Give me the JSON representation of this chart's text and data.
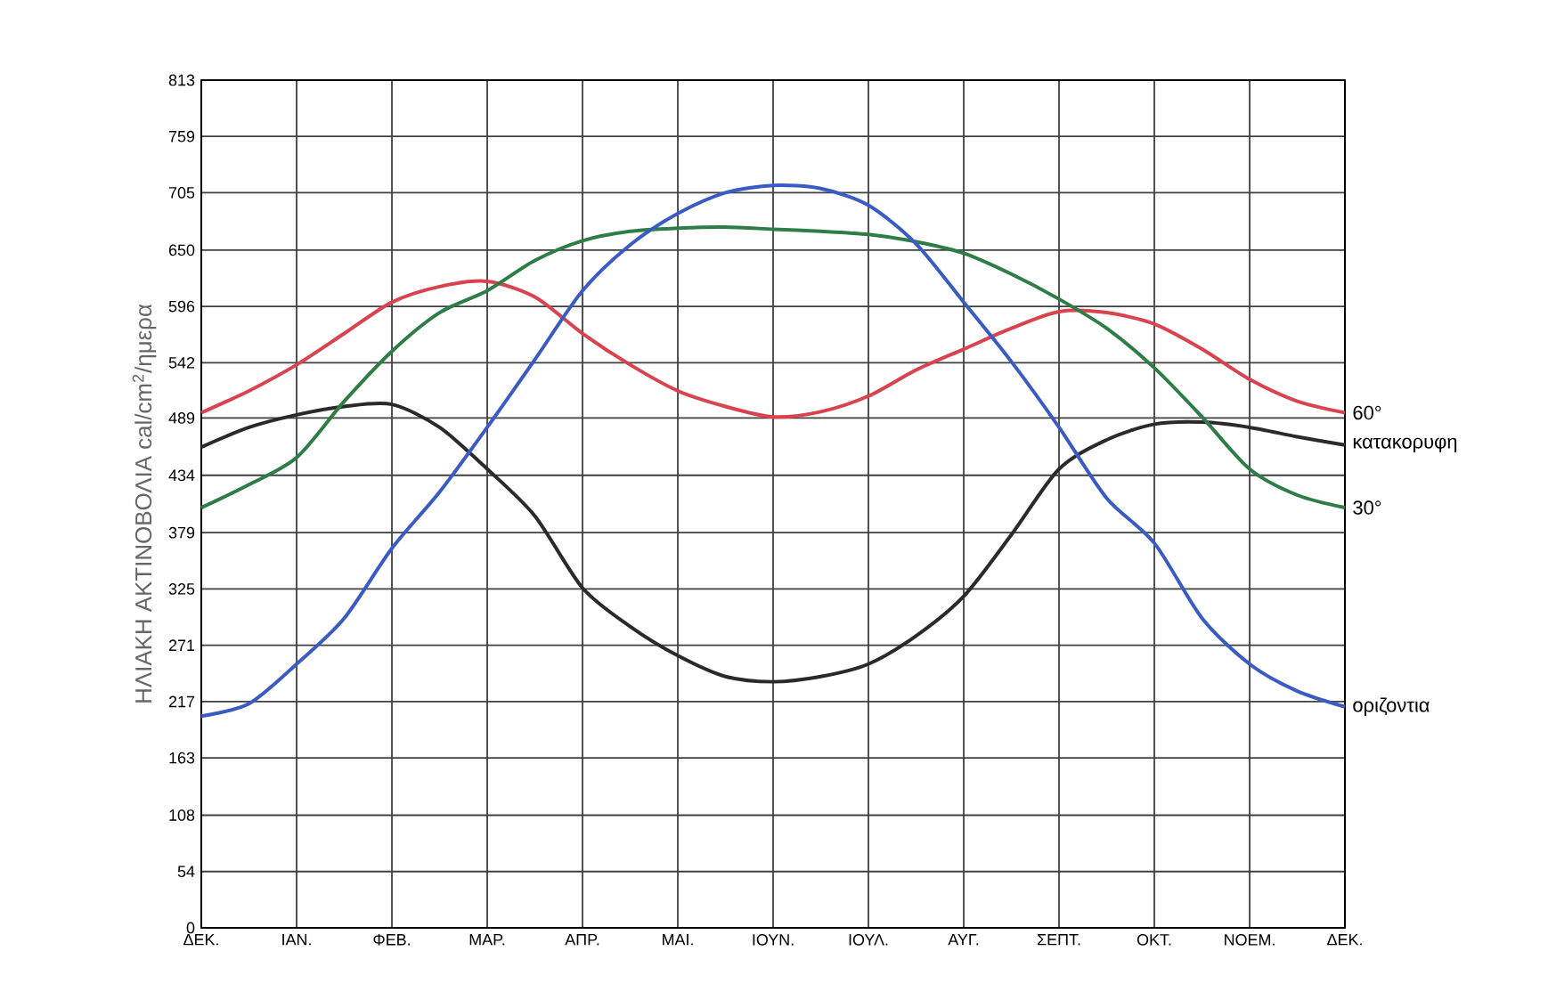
{
  "chart_data": {
    "type": "line",
    "ylabel": "ΗΛΙΑΚΗ ΑΚΤΙΝΟΒΟΛΙΑ cal/cm$^{2}$/ημερα",
    "categories": [
      "ΔΕΚ.",
      null,
      "ΙΑΝ.",
      null,
      "ΦΕΒ.",
      null,
      "ΜΑΡ.",
      null,
      "ΑΠΡ.",
      null,
      "ΜΑΙ.",
      null,
      "ΙΟΥΝ.",
      null,
      "ΙΟΥΛ.",
      null,
      "ΑΥΓ.",
      null,
      "ΣΕΠΤ.",
      null,
      "ΟΚΤ.",
      null,
      "ΝΟΕΜ.",
      null,
      "ΔΕΚ."
    ],
    "ylim": [
      0,
      813
    ],
    "yticks": [
      0,
      54,
      108,
      163,
      217,
      271,
      325,
      379,
      434,
      489,
      542,
      596,
      650,
      705,
      759,
      813
    ],
    "grid": true,
    "legend": false,
    "marker": "none",
    "line_style": "solid",
    "series": [
      {
        "name": "60°",
        "color": "#d9434f",
        "values": [
          494,
          515,
          540,
          570,
          600,
          615,
          620,
          605,
          570,
          540,
          515,
          500,
          490,
          495,
          510,
          535,
          555,
          575,
          591,
          590,
          579,
          555,
          526,
          505,
          494
        ]
      },
      {
        "name": "κατακορυφη",
        "color": "#2a2a2a",
        "values": [
          461,
          480,
          492,
          500,
          502,
          480,
          440,
          395,
          326,
          289,
          261,
          241,
          236,
          241,
          253,
          280,
          318,
          377,
          440,
          468,
          483,
          485,
          480,
          471,
          463
        ]
      },
      {
        "name": "30°",
        "color": "#2e7d46",
        "values": [
          403,
          425,
          451,
          505,
          553,
          590,
          611,
          640,
          659,
          668,
          671,
          672,
          670,
          668,
          665,
          658,
          647,
          627,
          603,
          575,
          537,
          490,
          440,
          415,
          403
        ]
      },
      {
        "name": "οριζοντια",
        "color": "#3a5bc4",
        "values": [
          203,
          215,
          253,
          297,
          364,
          418,
          480,
          545,
          611,
          655,
          685,
          705,
          712,
          709,
          693,
          656,
          600,
          543,
          480,
          412,
          369,
          297,
          253,
          227,
          212
        ]
      }
    ]
  }
}
